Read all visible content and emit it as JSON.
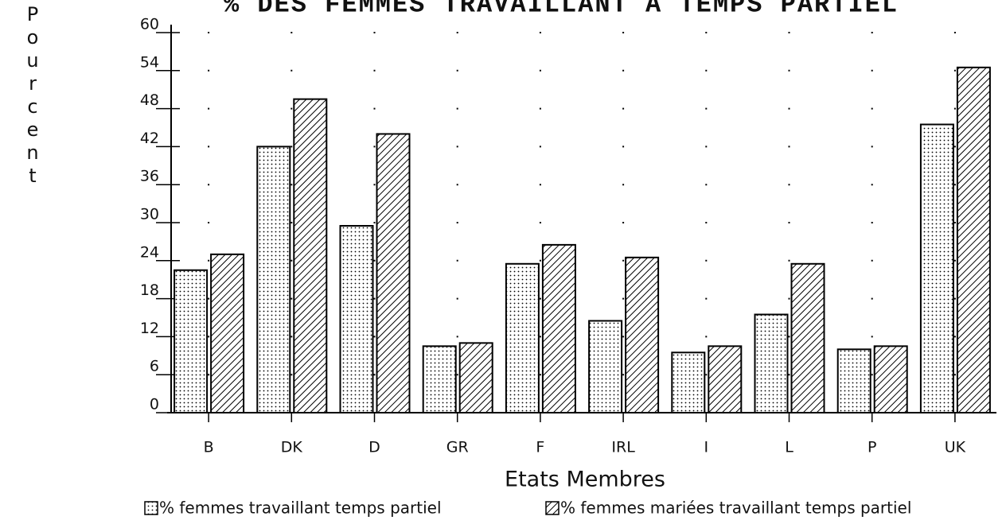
{
  "chart_data": {
    "type": "bar",
    "title": "% DES FEMMES TRAVAILLANT A TEMPS PARTIEL",
    "y_label": "Pourcent",
    "x_label": "Etats Membres",
    "categories": [
      "B",
      "DK",
      "D",
      "GR",
      "F",
      "IRL",
      "I",
      "L",
      "P",
      "UK"
    ],
    "series": [
      {
        "name": "% femmes travaillant temps partiel",
        "color": "#000000",
        "pattern": "dots",
        "values": [
          22.5,
          42,
          29.5,
          10.5,
          23.5,
          14.5,
          9.5,
          15.5,
          10,
          45.5
        ]
      },
      {
        "name": "% femmes mariées travaillant temps partiel",
        "color": "#000000",
        "pattern": "hatch",
        "values": [
          25,
          49.5,
          44,
          11,
          26.5,
          24.5,
          10.5,
          23.5,
          10.5,
          54.5
        ]
      }
    ],
    "ylim": [
      0,
      60
    ],
    "yticks": [
      0,
      6,
      12,
      18,
      24,
      30,
      36,
      42,
      48,
      54,
      60
    ],
    "grid": true
  }
}
